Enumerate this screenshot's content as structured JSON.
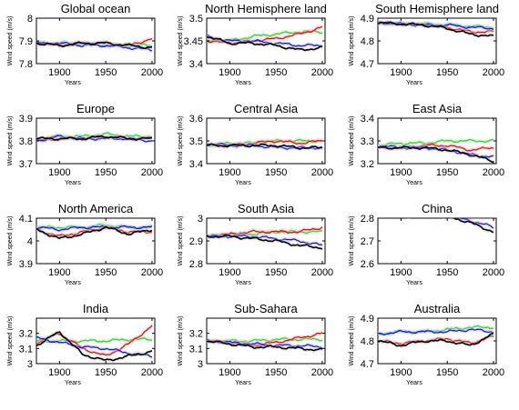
{
  "figure": {
    "xlabel": "Years",
    "ylabel": "Wind speed (m/s)",
    "colors": {
      "green": "#22dd22",
      "red": "#ff0000",
      "blue": "#1010ff",
      "black": "#000000",
      "band": "#c8c8c8"
    }
  },
  "chart_data": [
    {
      "type": "line",
      "title": "Global ocean",
      "xlim": [
        1875,
        2003
      ],
      "ylim": [
        7.8,
        8.0
      ],
      "xticks": [
        1900,
        1950,
        2000
      ],
      "yticks": [
        7.8,
        7.9,
        8.0
      ],
      "ytick_labels": [
        "7.8",
        "7.9",
        "8"
      ],
      "x": [
        1875,
        1900,
        1925,
        1950,
        1975,
        2000
      ],
      "series": [
        {
          "color": "green",
          "values": [
            7.89,
            7.89,
            7.89,
            7.88,
            7.88,
            7.88
          ]
        },
        {
          "color": "red",
          "values": [
            7.89,
            7.88,
            7.89,
            7.89,
            7.88,
            7.91
          ]
        },
        {
          "color": "blue",
          "values": [
            7.89,
            7.89,
            7.88,
            7.88,
            7.87,
            7.86
          ]
        },
        {
          "color": "black",
          "values": [
            7.89,
            7.88,
            7.89,
            7.89,
            7.88,
            7.87
          ]
        }
      ]
    },
    {
      "type": "line",
      "title": "North Hemisphere land",
      "xlim": [
        1875,
        2003
      ],
      "ylim": [
        3.4,
        3.5
      ],
      "xticks": [
        1900,
        1950,
        2000
      ],
      "yticks": [
        3.4,
        3.45,
        3.5
      ],
      "ytick_labels": [
        "3.4",
        "3.45",
        "3.5"
      ],
      "x": [
        1875,
        1900,
        1925,
        1950,
        1975,
        2000
      ],
      "series": [
        {
          "color": "green",
          "values": [
            3.45,
            3.45,
            3.46,
            3.465,
            3.47,
            3.47
          ]
        },
        {
          "color": "red",
          "values": [
            3.45,
            3.445,
            3.45,
            3.455,
            3.465,
            3.48
          ]
        },
        {
          "color": "blue",
          "values": [
            3.46,
            3.45,
            3.45,
            3.445,
            3.44,
            3.44
          ]
        },
        {
          "color": "black",
          "values": [
            3.46,
            3.445,
            3.445,
            3.44,
            3.43,
            3.435
          ]
        }
      ]
    },
    {
      "type": "line",
      "title": "South Hemisphere land",
      "xlim": [
        1875,
        2003
      ],
      "ylim": [
        4.7,
        4.9
      ],
      "xticks": [
        1900,
        1950,
        2000
      ],
      "yticks": [
        4.7,
        4.8,
        4.9
      ],
      "ytick_labels": [
        "4.7",
        "4.8",
        "4.9"
      ],
      "x": [
        1875,
        1900,
        1925,
        1950,
        1975,
        2000
      ],
      "series": [
        {
          "color": "green",
          "values": [
            4.88,
            4.875,
            4.875,
            4.87,
            4.865,
            4.86
          ]
        },
        {
          "color": "red",
          "values": [
            4.88,
            4.875,
            4.87,
            4.86,
            4.84,
            4.84
          ]
        },
        {
          "color": "blue",
          "values": [
            4.88,
            4.875,
            4.87,
            4.87,
            4.86,
            4.855
          ]
        },
        {
          "color": "black",
          "values": [
            4.88,
            4.875,
            4.87,
            4.855,
            4.83,
            4.82
          ]
        }
      ]
    },
    {
      "type": "line",
      "title": "Europe",
      "xlim": [
        1875,
        2003
      ],
      "ylim": [
        3.7,
        3.9
      ],
      "xticks": [
        1900,
        1950,
        2000
      ],
      "yticks": [
        3.7,
        3.8,
        3.9
      ],
      "ytick_labels": [
        "3.7",
        "3.8",
        "3.9"
      ],
      "x": [
        1875,
        1900,
        1925,
        1950,
        1975,
        2000
      ],
      "series": [
        {
          "color": "green",
          "values": [
            3.81,
            3.82,
            3.82,
            3.83,
            3.82,
            3.82
          ]
        },
        {
          "color": "red",
          "values": [
            3.8,
            3.81,
            3.81,
            3.82,
            3.81,
            3.81
          ]
        },
        {
          "color": "blue",
          "values": [
            3.8,
            3.82,
            3.81,
            3.81,
            3.81,
            3.8
          ]
        },
        {
          "color": "black",
          "values": [
            3.81,
            3.81,
            3.81,
            3.82,
            3.81,
            3.81
          ]
        }
      ]
    },
    {
      "type": "line",
      "title": "Central Asia",
      "xlim": [
        1875,
        2003
      ],
      "ylim": [
        3.4,
        3.6
      ],
      "xticks": [
        1900,
        1950,
        2000
      ],
      "yticks": [
        3.4,
        3.5,
        3.6
      ],
      "ytick_labels": [
        "3.4",
        "3.5",
        "3.6"
      ],
      "x": [
        1875,
        1900,
        1925,
        1950,
        1975,
        2000
      ],
      "series": [
        {
          "color": "green",
          "values": [
            3.48,
            3.49,
            3.49,
            3.5,
            3.5,
            3.5
          ]
        },
        {
          "color": "red",
          "values": [
            3.48,
            3.48,
            3.49,
            3.5,
            3.49,
            3.5
          ]
        },
        {
          "color": "blue",
          "values": [
            3.49,
            3.48,
            3.48,
            3.47,
            3.47,
            3.47
          ]
        },
        {
          "color": "black",
          "values": [
            3.48,
            3.48,
            3.48,
            3.48,
            3.47,
            3.47
          ]
        }
      ]
    },
    {
      "type": "line",
      "title": "East Asia",
      "xlim": [
        1875,
        2003
      ],
      "ylim": [
        3.2,
        3.4
      ],
      "xticks": [
        1900,
        1950,
        2000
      ],
      "yticks": [
        3.2,
        3.3,
        3.4
      ],
      "ytick_labels": [
        "3.2",
        "3.3",
        "3.4"
      ],
      "x": [
        1875,
        1900,
        1925,
        1950,
        1975,
        2000
      ],
      "series": [
        {
          "color": "green",
          "values": [
            3.28,
            3.29,
            3.29,
            3.3,
            3.3,
            3.3
          ]
        },
        {
          "color": "red",
          "values": [
            3.27,
            3.27,
            3.28,
            3.28,
            3.26,
            3.27
          ]
        },
        {
          "color": "blue",
          "values": [
            3.28,
            3.27,
            3.27,
            3.26,
            3.24,
            3.23
          ]
        },
        {
          "color": "black",
          "values": [
            3.27,
            3.27,
            3.27,
            3.26,
            3.24,
            3.21
          ]
        }
      ]
    },
    {
      "type": "line",
      "title": "North America",
      "xlim": [
        1875,
        2003
      ],
      "ylim": [
        3.9,
        4.1
      ],
      "xticks": [
        1900,
        1950,
        2000
      ],
      "yticks": [
        3.9,
        4.0,
        4.1
      ],
      "ytick_labels": [
        "3.9",
        "4",
        "4.1"
      ],
      "x": [
        1875,
        1900,
        1925,
        1950,
        1975,
        2000
      ],
      "series": [
        {
          "color": "green",
          "values": [
            4.06,
            4.06,
            4.06,
            4.07,
            4.06,
            4.06
          ]
        },
        {
          "color": "red",
          "values": [
            4.05,
            4.02,
            4.04,
            4.06,
            4.04,
            4.04
          ]
        },
        {
          "color": "blue",
          "values": [
            4.06,
            4.05,
            4.06,
            4.06,
            4.06,
            4.06
          ]
        },
        {
          "color": "black",
          "values": [
            4.05,
            4.01,
            4.03,
            4.06,
            4.03,
            4.05
          ]
        }
      ]
    },
    {
      "type": "line",
      "title": "South Asia",
      "xlim": [
        1875,
        2003
      ],
      "ylim": [
        2.8,
        3.0
      ],
      "xticks": [
        1900,
        1950,
        2000
      ],
      "yticks": [
        2.8,
        2.9,
        3.0
      ],
      "ytick_labels": [
        "2.8",
        "2.9",
        "3"
      ],
      "x": [
        1875,
        1900,
        1925,
        1950,
        1975,
        2000
      ],
      "series": [
        {
          "color": "green",
          "values": [
            2.92,
            2.93,
            2.93,
            2.94,
            2.94,
            2.94
          ]
        },
        {
          "color": "red",
          "values": [
            2.92,
            2.93,
            2.94,
            2.94,
            2.94,
            2.96
          ]
        },
        {
          "color": "blue",
          "values": [
            2.92,
            2.92,
            2.92,
            2.91,
            2.9,
            2.88
          ]
        },
        {
          "color": "black",
          "values": [
            2.92,
            2.92,
            2.91,
            2.9,
            2.88,
            2.87
          ]
        }
      ]
    },
    {
      "type": "line",
      "title": "China",
      "xlim": [
        1875,
        2003
      ],
      "ylim": [
        2.6,
        2.8
      ],
      "xticks": [
        1900,
        1950,
        2000
      ],
      "yticks": [
        2.6,
        2.7,
        2.8
      ],
      "ytick_labels": [
        "2.6",
        "2.7",
        "2.8"
      ],
      "x": [
        1875,
        1900,
        1925,
        1950,
        1975,
        2000
      ],
      "series": [
        {
          "color": "green",
          "values": [
            2.82,
            2.82,
            2.82,
            2.82,
            2.82,
            2.82
          ]
        },
        {
          "color": "red",
          "values": [
            2.82,
            2.81,
            2.82,
            2.81,
            2.8,
            2.81
          ]
        },
        {
          "color": "blue",
          "values": [
            2.82,
            2.82,
            2.82,
            2.81,
            2.79,
            2.76
          ]
        },
        {
          "color": "black",
          "values": [
            2.82,
            2.82,
            2.82,
            2.81,
            2.78,
            2.74
          ]
        }
      ]
    },
    {
      "type": "line",
      "title": "India",
      "xlim": [
        1875,
        2003
      ],
      "ylim": [
        3.0,
        3.3
      ],
      "xticks": [
        1900,
        1950,
        2000
      ],
      "yticks": [
        3.0,
        3.1,
        3.2
      ],
      "ytick_labels": [
        "3",
        "3.1",
        "3.2"
      ],
      "x": [
        1875,
        1900,
        1925,
        1950,
        1975,
        2000
      ],
      "series": [
        {
          "color": "green",
          "values": [
            3.15,
            3.15,
            3.15,
            3.15,
            3.16,
            3.16
          ]
        },
        {
          "color": "red",
          "values": [
            3.14,
            3.2,
            3.1,
            3.05,
            3.13,
            3.25
          ]
        },
        {
          "color": "blue",
          "values": [
            3.17,
            3.14,
            3.11,
            3.1,
            3.07,
            3.05
          ]
        },
        {
          "color": "black",
          "values": [
            3.12,
            3.21,
            3.06,
            3.02,
            3.05,
            3.08
          ]
        }
      ]
    },
    {
      "type": "line",
      "title": "Sub-Sahara",
      "xlim": [
        1875,
        2003
      ],
      "ylim": [
        3.0,
        3.3
      ],
      "xticks": [
        1900,
        1950,
        2000
      ],
      "yticks": [
        3.0,
        3.1,
        3.2
      ],
      "ytick_labels": [
        "3",
        "3.1",
        "3.2"
      ],
      "x": [
        1875,
        1900,
        1925,
        1950,
        1975,
        2000
      ],
      "series": [
        {
          "color": "green",
          "values": [
            3.15,
            3.15,
            3.15,
            3.16,
            3.16,
            3.16
          ]
        },
        {
          "color": "red",
          "values": [
            3.15,
            3.14,
            3.12,
            3.14,
            3.17,
            3.2
          ]
        },
        {
          "color": "blue",
          "values": [
            3.15,
            3.14,
            3.13,
            3.12,
            3.12,
            3.11
          ]
        },
        {
          "color": "black",
          "values": [
            3.15,
            3.13,
            3.11,
            3.11,
            3.1,
            3.09
          ]
        }
      ]
    },
    {
      "type": "line",
      "title": "Australia",
      "xlim": [
        1875,
        2003
      ],
      "ylim": [
        4.7,
        4.9
      ],
      "xticks": [
        1900,
        1950,
        2000
      ],
      "yticks": [
        4.7,
        4.8,
        4.9
      ],
      "ytick_labels": [
        "4.7",
        "4.8",
        "4.9"
      ],
      "x": [
        1875,
        1900,
        1925,
        1950,
        1975,
        2000
      ],
      "series": [
        {
          "color": "green",
          "values": [
            4.83,
            4.84,
            4.84,
            4.85,
            4.86,
            4.86
          ]
        },
        {
          "color": "red",
          "values": [
            4.8,
            4.79,
            4.8,
            4.81,
            4.79,
            4.82
          ]
        },
        {
          "color": "blue",
          "values": [
            4.83,
            4.84,
            4.84,
            4.84,
            4.85,
            4.84
          ]
        },
        {
          "color": "black",
          "values": [
            4.8,
            4.78,
            4.8,
            4.8,
            4.78,
            4.83
          ]
        }
      ]
    }
  ]
}
